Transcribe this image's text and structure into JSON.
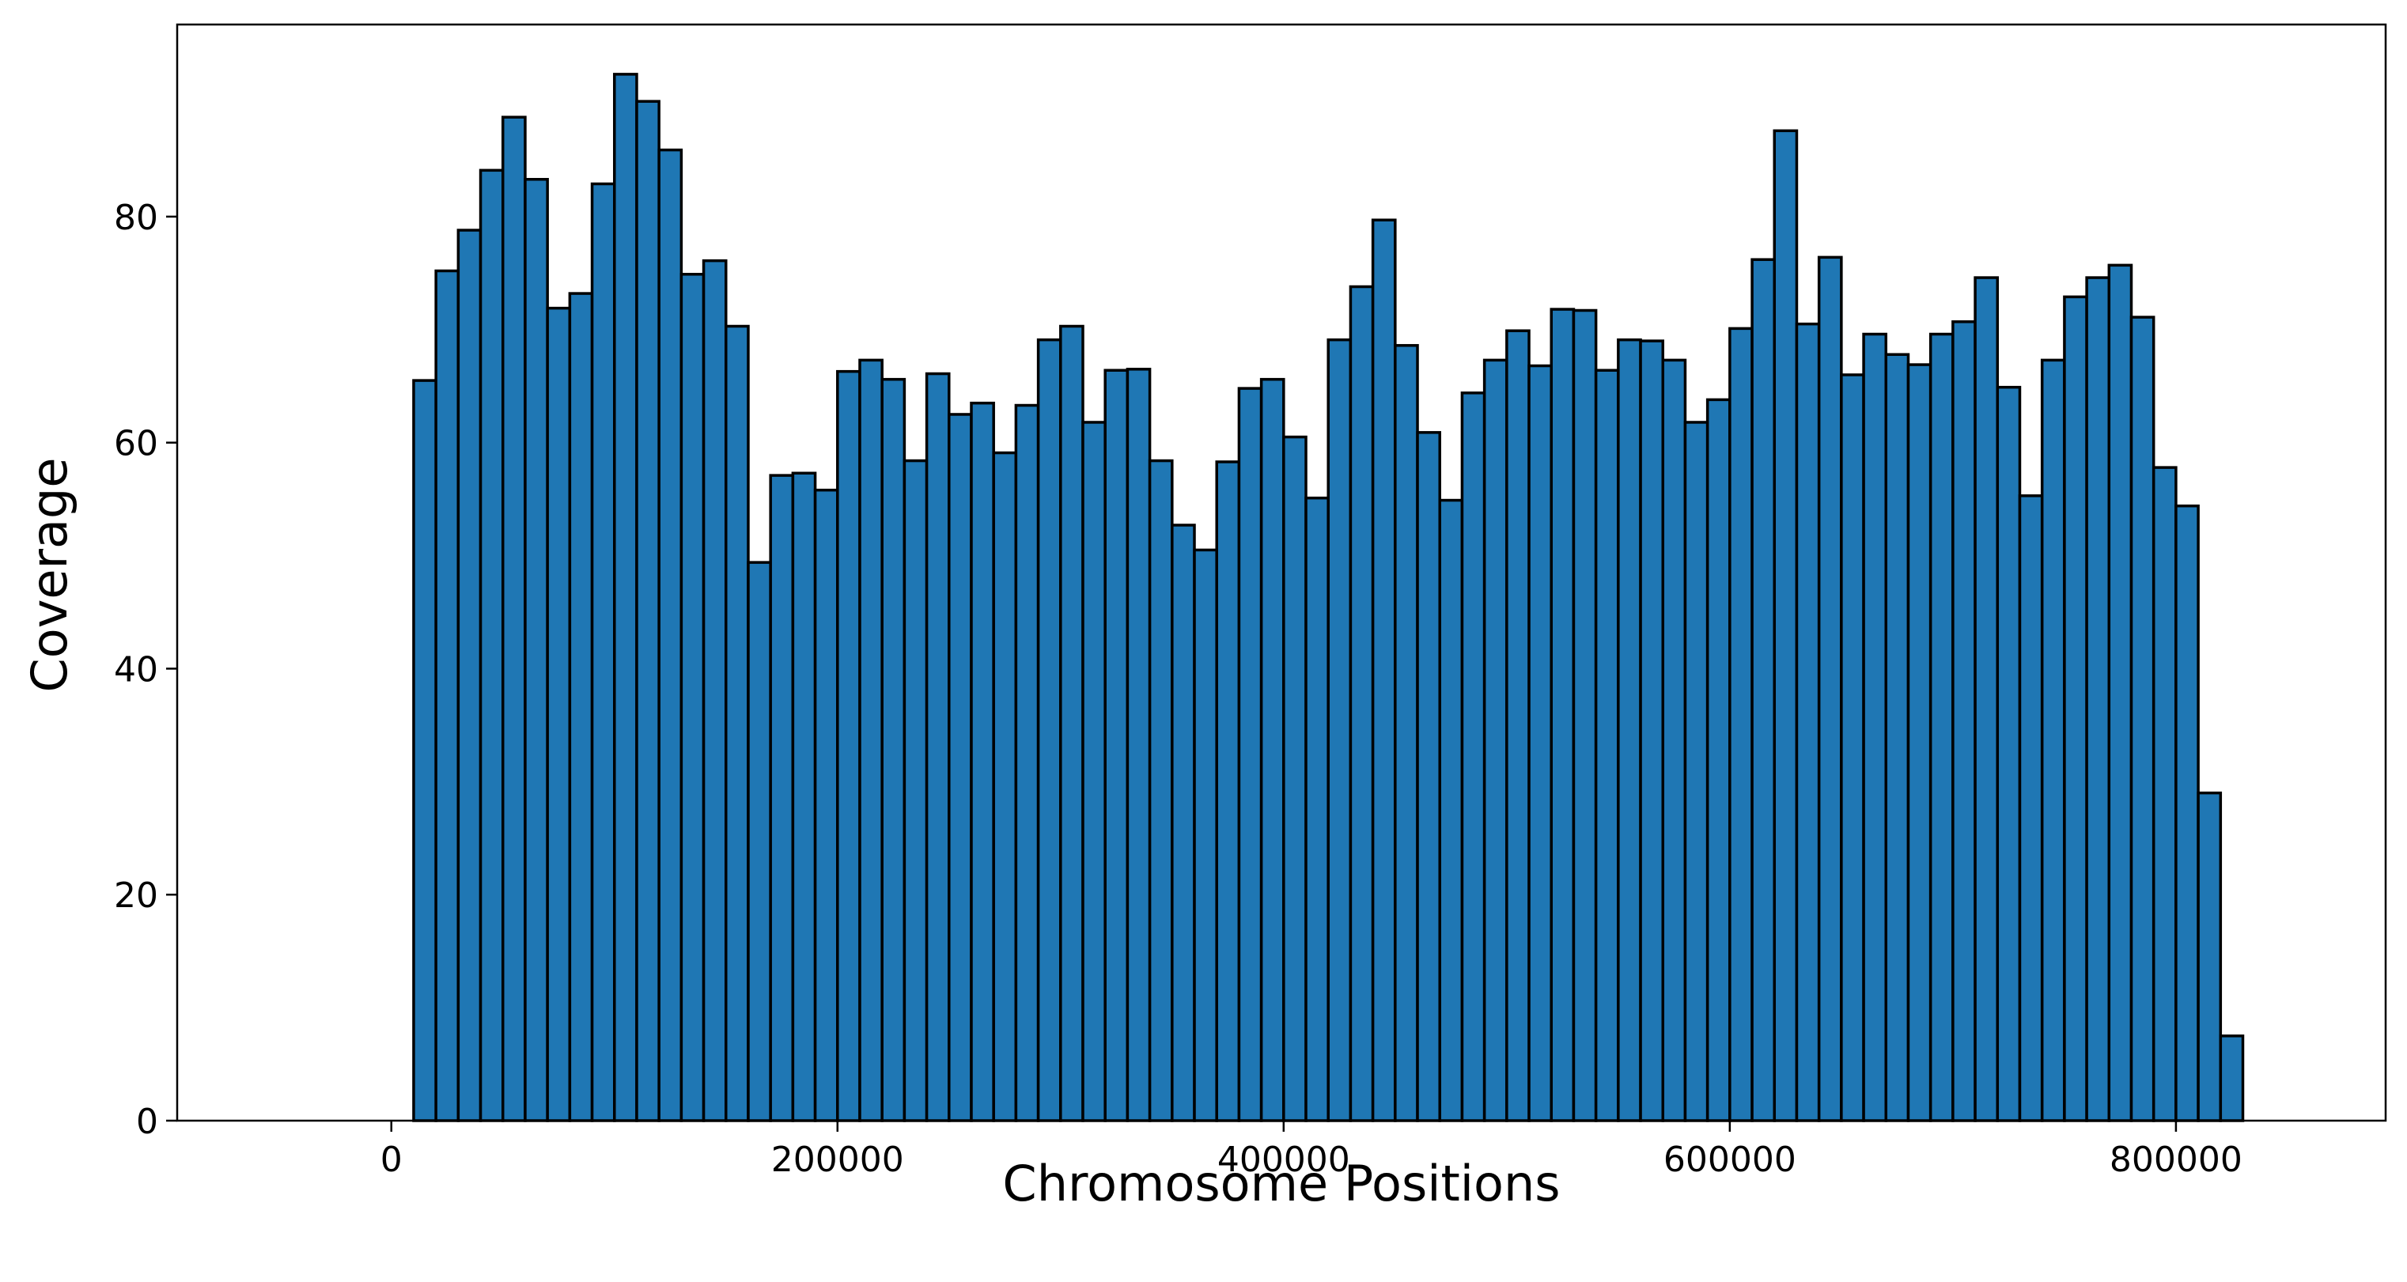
{
  "chart_data": {
    "type": "bar",
    "subtype": "histogram",
    "title": "",
    "xlabel": "Chromosome Positions",
    "ylabel": "Coverage",
    "xlim": [
      -96000,
      894000
    ],
    "ylim": [
      0,
      97
    ],
    "xticks": [
      0,
      200000,
      400000,
      600000,
      800000
    ],
    "xtick_labels": [
      "0",
      "200000",
      "400000",
      "600000",
      "800000"
    ],
    "yticks": [
      0,
      20,
      40,
      60,
      80
    ],
    "ytick_labels": [
      "0",
      "20",
      "40",
      "60",
      "80"
    ],
    "grid": false,
    "legend": "none",
    "bar_color": "#1f77b4",
    "edge_color": "#000000",
    "bin_start": 0,
    "bin_width": 10000,
    "bin_count": 85,
    "values": [
      0,
      65.5,
      75.2,
      78.8,
      84.1,
      88.8,
      83.3,
      71.9,
      73.2,
      82.9,
      92.6,
      90.2,
      85.9,
      74.9,
      76.1,
      70.3,
      49.4,
      57.1,
      57.3,
      55.8,
      66.3,
      67.3,
      65.6,
      58.4,
      66.1,
      62.5,
      63.5,
      59.1,
      63.3,
      69.1,
      70.3,
      61.8,
      66.4,
      66.5,
      58.4,
      52.7,
      50.5,
      58.3,
      64.8,
      65.6,
      60.5,
      55.1,
      69.1,
      73.8,
      79.7,
      68.6,
      60.9,
      54.9,
      64.4,
      67.3,
      69.9,
      66.8,
      71.8,
      71.7,
      66.4,
      69.1,
      69.0,
      67.3,
      61.8,
      63.8,
      70.1,
      76.2,
      87.6,
      70.5,
      76.4,
      66.0,
      69.6,
      67.8,
      66.9,
      69.6,
      70.7,
      74.6,
      64.9,
      55.3,
      67.3,
      72.9,
      74.6,
      75.7,
      71.1,
      57.8,
      54.4,
      29.0,
      7.5,
      0,
      0
    ]
  }
}
